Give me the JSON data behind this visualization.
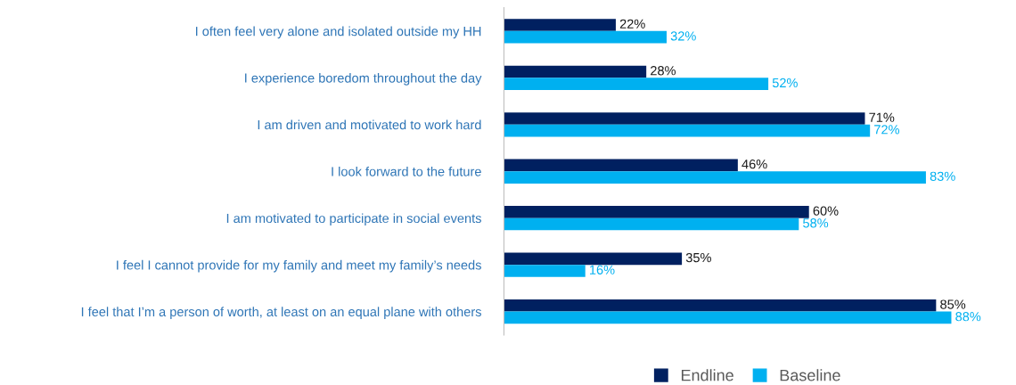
{
  "chart_data": {
    "type": "bar",
    "orientation": "horizontal",
    "legend": "bottom",
    "categories": [
      "I often feel very alone and isolated outside my HH",
      "I experience boredom throughout the day",
      "I am driven and motivated to work hard",
      "I look forward to the future",
      "I am motivated to participate in social events",
      "I feel I cannot provide for my family and meet my family’s needs",
      "I feel that I’m a person of worth, at least on an equal plane with others"
    ],
    "series": [
      {
        "name": "Endline",
        "color": "#002060",
        "values": [
          22,
          28,
          71,
          46,
          60,
          35,
          85
        ],
        "value_labels": [
          "22%",
          "28%",
          "71%",
          "46%",
          "60%",
          "35%",
          "85%"
        ]
      },
      {
        "name": "Baseline",
        "color": "#00b0f0",
        "values": [
          32,
          52,
          72,
          83,
          58,
          16,
          88
        ],
        "value_labels": [
          "32%",
          "52%",
          "72%",
          "83%",
          "58%",
          "16%",
          "88%"
        ]
      }
    ]
  }
}
